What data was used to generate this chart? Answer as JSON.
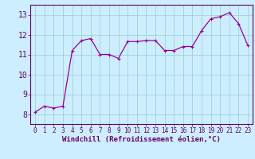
{
  "x": [
    0,
    1,
    2,
    3,
    4,
    5,
    6,
    7,
    8,
    9,
    10,
    11,
    12,
    13,
    14,
    15,
    16,
    17,
    18,
    19,
    20,
    21,
    22,
    23
  ],
  "y": [
    8.1,
    8.4,
    8.3,
    8.4,
    11.2,
    11.7,
    11.8,
    11.0,
    11.0,
    10.8,
    11.65,
    11.65,
    11.7,
    11.7,
    11.2,
    11.2,
    11.4,
    11.4,
    12.2,
    12.8,
    12.9,
    13.1,
    12.55,
    11.45
  ],
  "line_color": "#990099",
  "marker": "+",
  "marker_size": 3,
  "bg_color": "#cceeff",
  "grid_color": "#99cccc",
  "axis_color": "#660066",
  "tick_color": "#660066",
  "xlabel": "Windchill (Refroidissement éolien,°C)",
  "ylim": [
    7.5,
    13.5
  ],
  "xlim": [
    -0.5,
    23.5
  ],
  "yticks": [
    8,
    9,
    10,
    11,
    12,
    13
  ],
  "xticks": [
    0,
    1,
    2,
    3,
    4,
    5,
    6,
    7,
    8,
    9,
    10,
    11,
    12,
    13,
    14,
    15,
    16,
    17,
    18,
    19,
    20,
    21,
    22,
    23
  ],
  "xlabel_fontsize": 6.5,
  "ytick_fontsize": 7,
  "xtick_fontsize": 5.5
}
